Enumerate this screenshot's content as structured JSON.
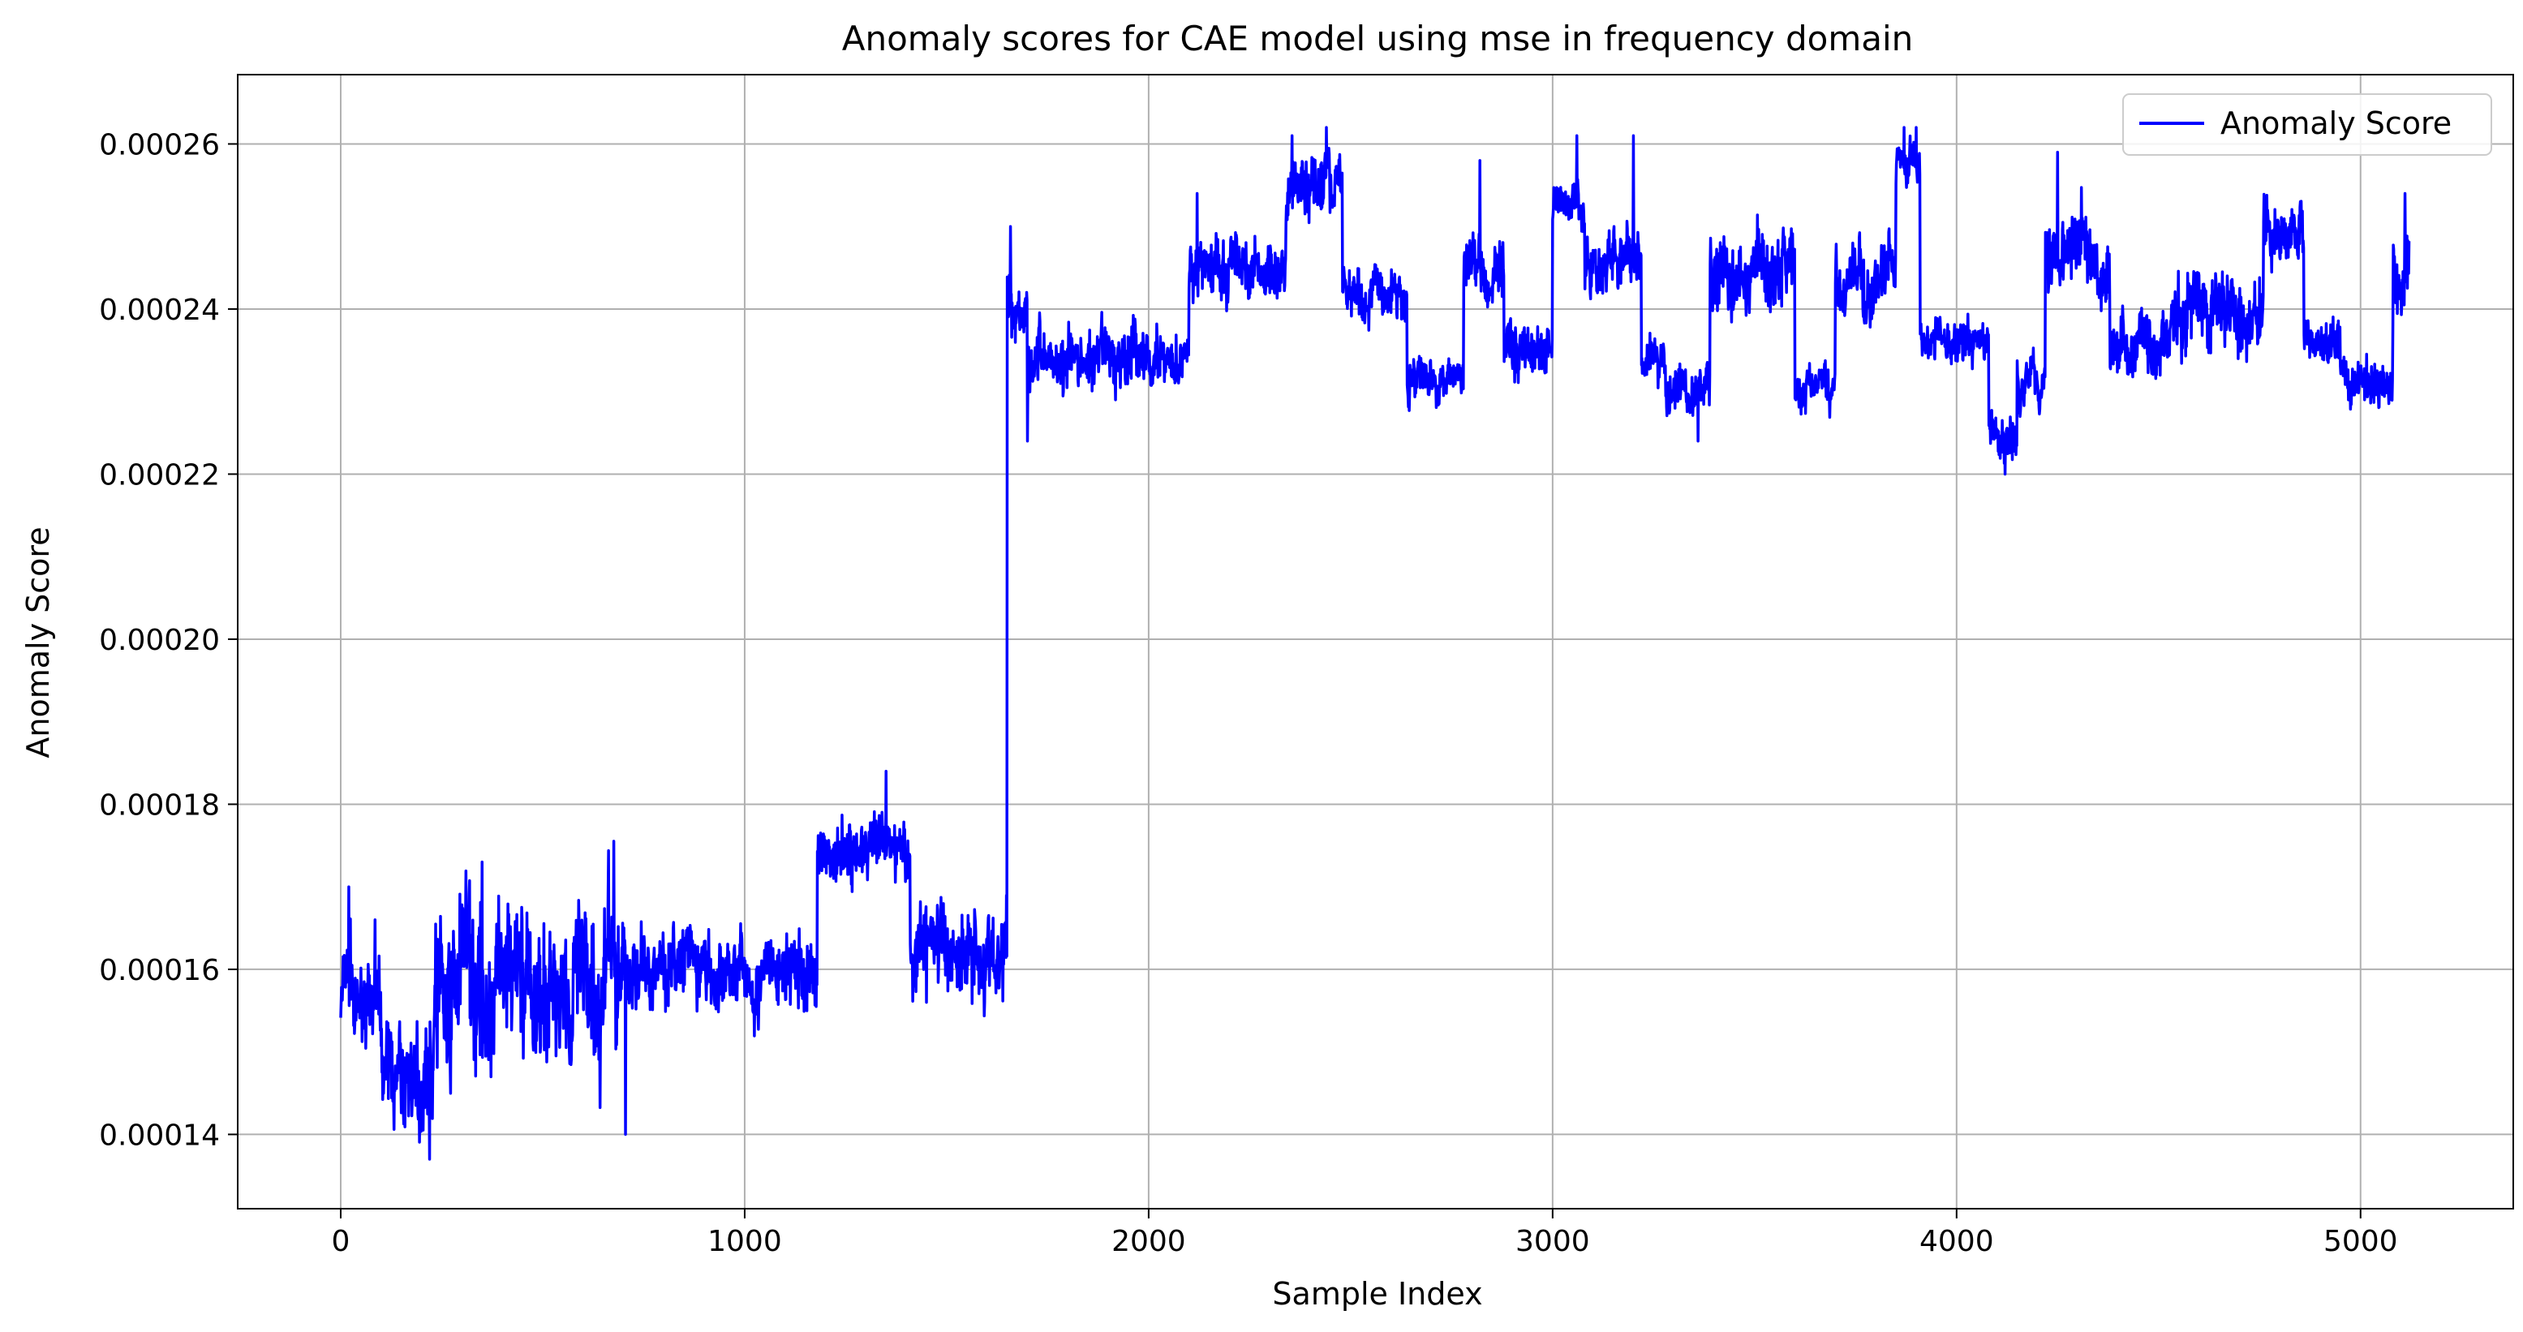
{
  "chart_data": {
    "type": "line",
    "title": "Anomaly scores for CAE model using mse in frequency domain",
    "xlabel": "Sample Index",
    "ylabel": "Anomaly Score",
    "xlim": [
      -255,
      5378
    ],
    "ylim": [
      0.000131,
      0.0002684
    ],
    "x_ticks": [
      0,
      1000,
      2000,
      3000,
      4000,
      5000
    ],
    "x_tick_labels": [
      "0",
      "1000",
      "2000",
      "3000",
      "4000",
      "5000"
    ],
    "y_ticks": [
      0.00014,
      0.00016,
      0.00018,
      0.0002,
      0.00022,
      0.00024,
      0.00026
    ],
    "y_tick_labels": [
      "0.00014",
      "0.00016",
      "0.00018",
      "0.00020",
      "0.00022",
      "0.00024",
      "0.00026"
    ],
    "grid": true,
    "legend": {
      "position": "top-right",
      "entries": [
        "Anomaly Score"
      ]
    },
    "series": [
      {
        "name": "Anomaly Score",
        "color": "#0000ff",
        "generation": "Dense noisy line (~5120 samples) reconstructed from the segment-level levels and amplitudes visible in the figure.",
        "n_points": 5121,
        "segments": [
          {
            "x0": 0,
            "x1": 30,
            "base": 0.000156,
            "amp": 6e-06
          },
          {
            "x0": 30,
            "x1": 100,
            "base": 0.000154,
            "amp": 5e-06
          },
          {
            "x0": 100,
            "x1": 230,
            "base": 0.000147,
            "amp": 6e-06
          },
          {
            "x0": 230,
            "x1": 700,
            "base": 0.000158,
            "amp": 1e-05
          },
          {
            "x0": 700,
            "x1": 1180,
            "base": 0.00016,
            "amp": 5e-06
          },
          {
            "x0": 1180,
            "x1": 1410,
            "base": 0.000174,
            "amp": 4e-06
          },
          {
            "x0": 1410,
            "x1": 1650,
            "base": 0.000162,
            "amp": 6e-06
          },
          {
            "x0": 1650,
            "x1": 1700,
            "base": 0.000241,
            "amp": 4e-06
          },
          {
            "x0": 1700,
            "x1": 2100,
            "base": 0.000234,
            "amp": 4e-06
          },
          {
            "x0": 2100,
            "x1": 2340,
            "base": 0.000245,
            "amp": 4e-06
          },
          {
            "x0": 2340,
            "x1": 2480,
            "base": 0.000255,
            "amp": 4e-06
          },
          {
            "x0": 2480,
            "x1": 2640,
            "base": 0.000242,
            "amp": 3e-06
          },
          {
            "x0": 2640,
            "x1": 2780,
            "base": 0.000232,
            "amp": 3e-06
          },
          {
            "x0": 2780,
            "x1": 2880,
            "base": 0.000246,
            "amp": 4e-06
          },
          {
            "x0": 2880,
            "x1": 3000,
            "base": 0.000235,
            "amp": 4e-06
          },
          {
            "x0": 3000,
            "x1": 3080,
            "base": 0.000253,
            "amp": 3e-06
          },
          {
            "x0": 3080,
            "x1": 3220,
            "base": 0.000246,
            "amp": 4e-06
          },
          {
            "x0": 3220,
            "x1": 3280,
            "base": 0.000233,
            "amp": 3e-06
          },
          {
            "x0": 3280,
            "x1": 3390,
            "base": 0.00023,
            "amp": 3e-06
          },
          {
            "x0": 3390,
            "x1": 3600,
            "base": 0.000245,
            "amp": 5e-06
          },
          {
            "x0": 3600,
            "x1": 3700,
            "base": 0.00023,
            "amp": 3e-06
          },
          {
            "x0": 3700,
            "x1": 3850,
            "base": 0.000243,
            "amp": 4e-06
          },
          {
            "x0": 3850,
            "x1": 3910,
            "base": 0.000257,
            "amp": 3e-06
          },
          {
            "x0": 3910,
            "x1": 4080,
            "base": 0.000236,
            "amp": 3e-06
          },
          {
            "x0": 4080,
            "x1": 4150,
            "base": 0.000225,
            "amp": 3e-06
          },
          {
            "x0": 4150,
            "x1": 4220,
            "base": 0.000232,
            "amp": 3e-06
          },
          {
            "x0": 4220,
            "x1": 4380,
            "base": 0.000246,
            "amp": 5e-06
          },
          {
            "x0": 4380,
            "x1": 4540,
            "base": 0.000236,
            "amp": 4e-06
          },
          {
            "x0": 4540,
            "x1": 4760,
            "base": 0.00024,
            "amp": 5e-06
          },
          {
            "x0": 4760,
            "x1": 4860,
            "base": 0.000249,
            "amp": 4e-06
          },
          {
            "x0": 4860,
            "x1": 4950,
            "base": 0.000236,
            "amp": 3e-06
          },
          {
            "x0": 4950,
            "x1": 5080,
            "base": 0.000232,
            "amp": 3e-06
          },
          {
            "x0": 5080,
            "x1": 5121,
            "base": 0.000244,
            "amp": 5e-06
          }
        ],
        "spikes": [
          {
            "x": 20,
            "y": 0.00017
          },
          {
            "x": 85,
            "y": 0.000166
          },
          {
            "x": 220,
            "y": 0.000137
          },
          {
            "x": 350,
            "y": 0.000173
          },
          {
            "x": 705,
            "y": 0.00014
          },
          {
            "x": 1350,
            "y": 0.000184
          },
          {
            "x": 1450,
            "y": 0.000156
          },
          {
            "x": 1658,
            "y": 0.00025
          },
          {
            "x": 1700,
            "y": 0.000224
          },
          {
            "x": 2120,
            "y": 0.000254
          },
          {
            "x": 2355,
            "y": 0.000261
          },
          {
            "x": 2440,
            "y": 0.000262
          },
          {
            "x": 2820,
            "y": 0.000258
          },
          {
            "x": 3060,
            "y": 0.000261
          },
          {
            "x": 3200,
            "y": 0.000261
          },
          {
            "x": 3360,
            "y": 0.000224
          },
          {
            "x": 3870,
            "y": 0.000262
          },
          {
            "x": 3900,
            "y": 0.000262
          },
          {
            "x": 4120,
            "y": 0.00022
          },
          {
            "x": 4250,
            "y": 0.000259
          },
          {
            "x": 5110,
            "y": 0.000254
          }
        ]
      }
    ]
  }
}
